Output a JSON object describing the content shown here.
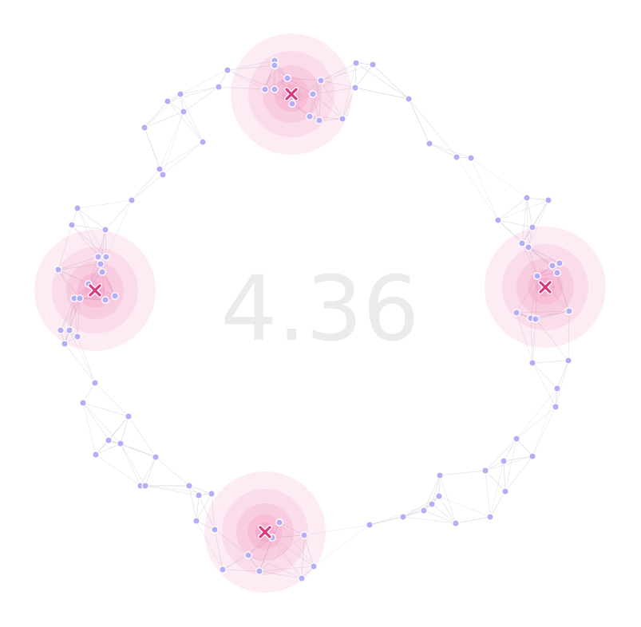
{
  "score": {
    "value": "4.36"
  },
  "colors": {
    "background": "#ffffff",
    "node_fill": "#b3aef5",
    "node_stroke": "#ffffff",
    "edge": "#c4c4d4",
    "halo": "#f06ea8",
    "marker": "#d83a7c",
    "score_text": "#ebebeb"
  },
  "marker_icon": "x-cross-icon",
  "clusters": 4,
  "nodes_per_cluster_approx": 30
}
